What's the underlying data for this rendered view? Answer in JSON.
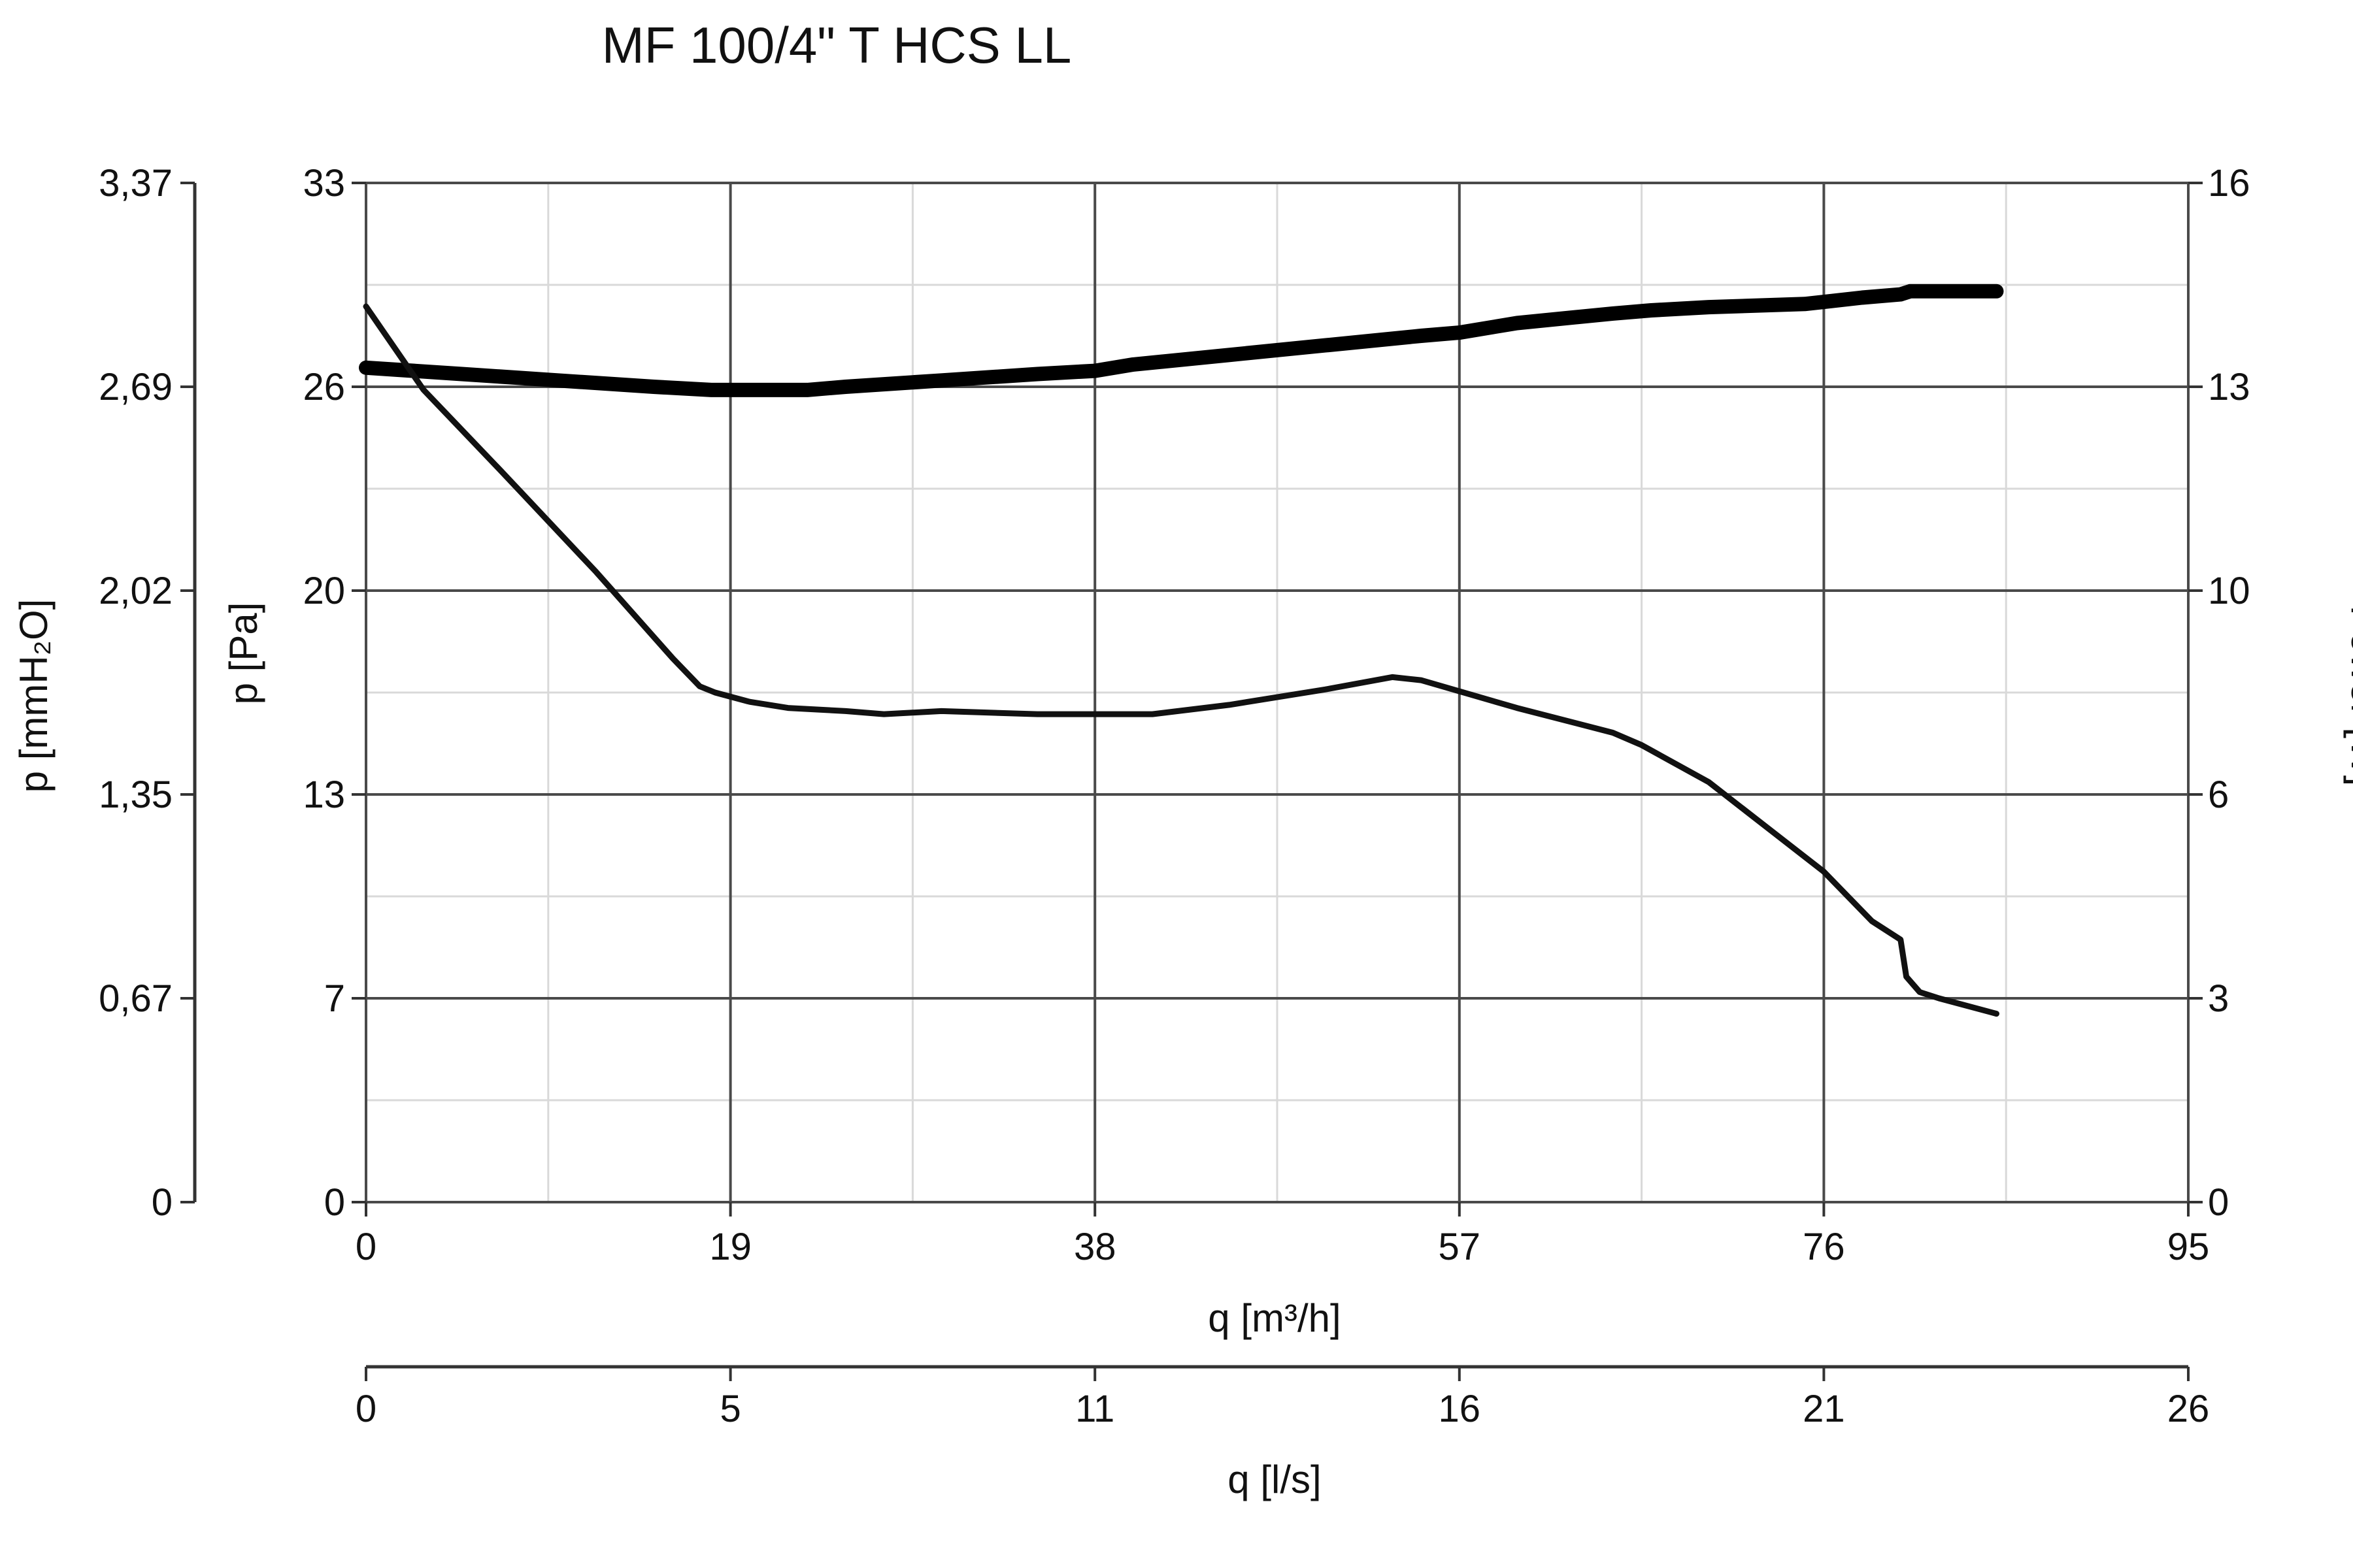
{
  "chart_data": {
    "type": "line",
    "title": "MF 100/4\" T HCS LL",
    "xlabel": "q [m³/h]",
    "xlim": [
      0,
      95
    ],
    "x_ticks": [
      "0",
      "19",
      "38",
      "57",
      "76",
      "95"
    ],
    "x2label": "q [l/s]",
    "x2_ticks": [
      "0",
      "5",
      "11",
      "16",
      "21",
      "26"
    ],
    "ylabel": "p [Pa]",
    "ylim": [
      0,
      33
    ],
    "y_ticks": [
      "0",
      "7",
      "13",
      "20",
      "26",
      "33"
    ],
    "y2label": "p [mmH₂O]",
    "y2_ticks": [
      "0",
      "0,67",
      "1,35",
      "2,02",
      "2,69",
      "3,37"
    ],
    "y3label": "Power [W]",
    "y3lim": [
      0,
      16
    ],
    "y3_ticks": [
      "0",
      "3",
      "6",
      "10",
      "13",
      "16"
    ],
    "grid": true,
    "series": [
      {
        "axis": "pressure",
        "x": [
          0,
          3,
          7,
          12,
          16,
          17.4,
          18.2,
          20,
          22,
          25,
          27,
          30,
          35,
          40,
          41,
          45,
          50,
          53.5,
          55,
          60,
          65,
          66.5,
          70,
          76,
          78.5,
          80,
          80.3,
          81,
          82,
          85
        ],
        "y": [
          29.0,
          26.3,
          23.7,
          20.4,
          17.6,
          16.7,
          16.5,
          16.2,
          16.0,
          15.9,
          15.8,
          15.9,
          15.8,
          15.8,
          15.8,
          16.1,
          16.6,
          17.0,
          16.9,
          16.0,
          15.2,
          14.8,
          13.6,
          10.7,
          9.1,
          8.5,
          7.3,
          6.8,
          6.6,
          6.1
        ],
        "color": "#111111"
      },
      {
        "axis": "power",
        "x": [
          0,
          5,
          10,
          15,
          18,
          20,
          23,
          25,
          30,
          35,
          38,
          40,
          45,
          50,
          55,
          57,
          60,
          65,
          67,
          70,
          75,
          78,
          80,
          80.5,
          85
        ],
        "y": [
          13.1,
          13.0,
          12.9,
          12.8,
          12.75,
          12.75,
          12.75,
          12.8,
          12.9,
          13.0,
          13.05,
          13.15,
          13.3,
          13.45,
          13.6,
          13.65,
          13.8,
          13.95,
          14.0,
          14.05,
          14.1,
          14.2,
          14.25,
          14.3,
          14.3
        ],
        "color": "#000000"
      }
    ]
  }
}
